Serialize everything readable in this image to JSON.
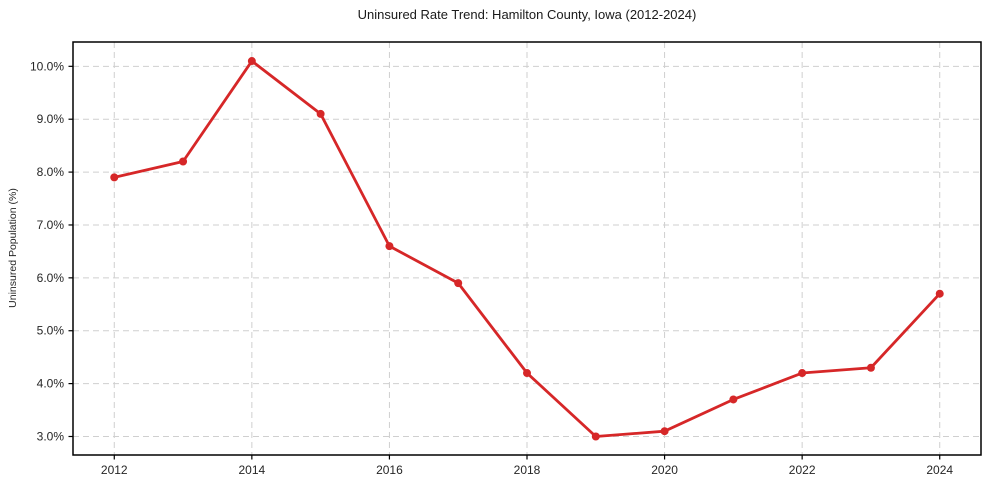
{
  "chart_data": {
    "type": "line",
    "title": "Uninsured Rate Trend: Hamilton County, Iowa (2012-2024)",
    "xlabel": "",
    "ylabel": "Uninsured Population (%)",
    "x": [
      2012,
      2013,
      2014,
      2015,
      2016,
      2017,
      2018,
      2019,
      2020,
      2021,
      2022,
      2023,
      2024
    ],
    "values": [
      7.9,
      8.2,
      10.1,
      9.1,
      6.6,
      5.9,
      4.2,
      3.0,
      3.1,
      3.7,
      4.2,
      4.3,
      5.7
    ],
    "xticks": [
      2012,
      2014,
      2016,
      2018,
      2020,
      2022,
      2024
    ],
    "xtick_labels": [
      "2012",
      "2014",
      "2016",
      "2018",
      "2020",
      "2022",
      "2024"
    ],
    "yticks": [
      3,
      4,
      5,
      6,
      7,
      8,
      9,
      10
    ],
    "ytick_labels": [
      "3.0%",
      "4.0%",
      "5.0%",
      "6.0%",
      "7.0%",
      "8.0%",
      "9.0%",
      "10.0%"
    ],
    "xlim": [
      2011.4,
      2024.6
    ],
    "ylim": [
      2.65,
      10.46
    ],
    "grid": true,
    "grid_style": "dashed",
    "legend": false,
    "line_color": "#d62728",
    "marker": "o",
    "marker_color": "#d62728",
    "grid_color": "#cfcfcf",
    "axis_color": "#000000",
    "text_color": "#262626",
    "background": "#ffffff"
  }
}
